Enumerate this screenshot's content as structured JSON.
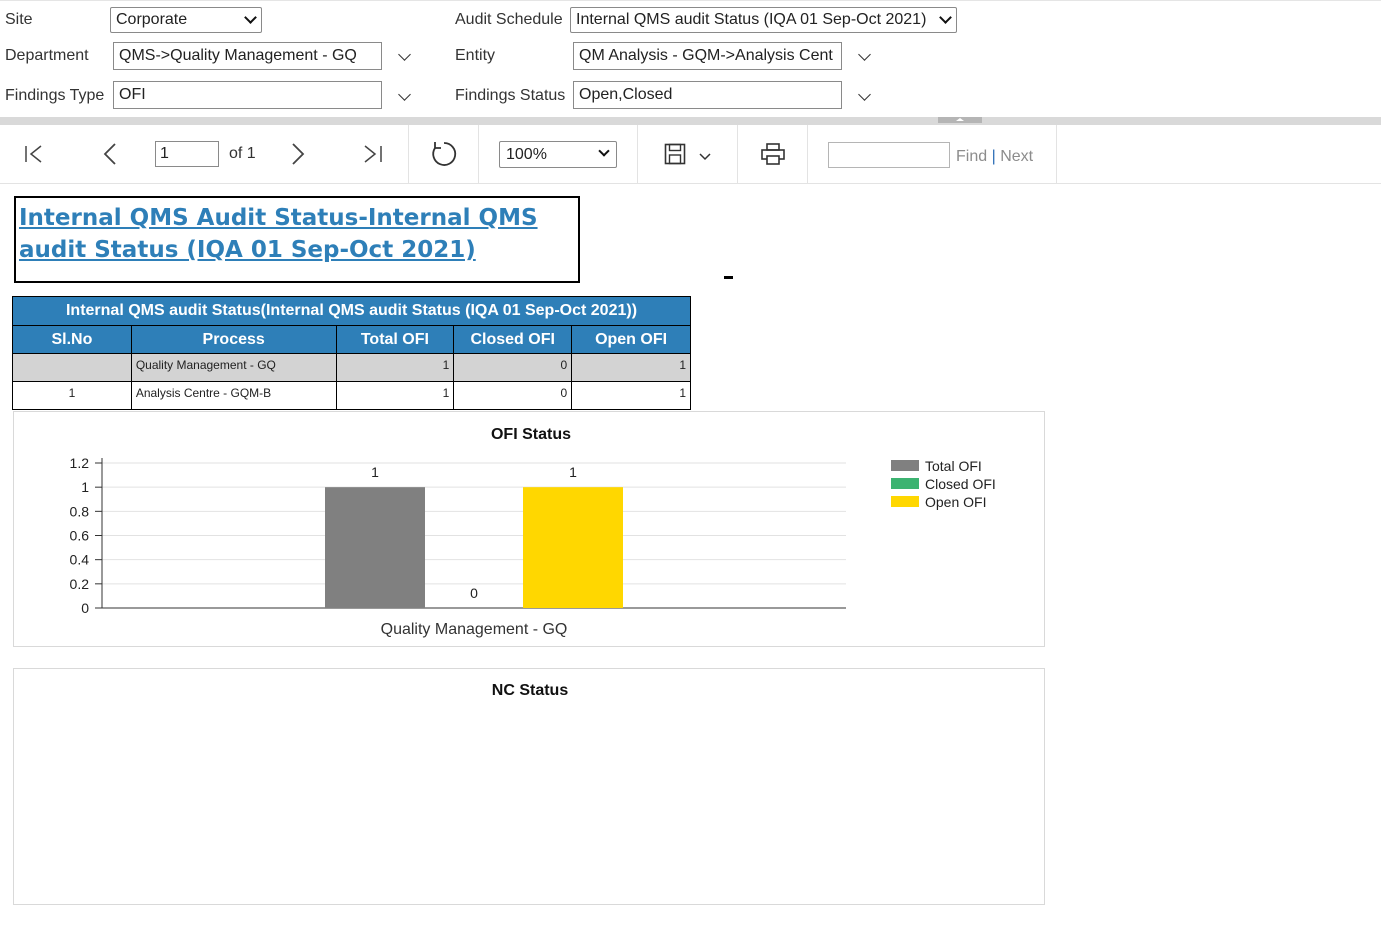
{
  "params": {
    "site": {
      "label": "Site",
      "value": "Corporate"
    },
    "audit_schedule": {
      "label": "Audit Schedule",
      "value": "Internal QMS audit Status (IQA 01 Sep-Oct 2021)"
    },
    "department": {
      "label": "Department",
      "value": "QMS->Quality Management - GQ"
    },
    "entity": {
      "label": "Entity",
      "value": "QM Analysis - GQM->Analysis Cent"
    },
    "findings_type": {
      "label": "Findings Type",
      "value": "OFI"
    },
    "findings_status": {
      "label": "Findings Status",
      "value": "Open,Closed"
    }
  },
  "toolbar": {
    "page_value": "1",
    "of_text": "of 1",
    "zoom": "100%",
    "find_label": "Find",
    "separator": "|",
    "next_label": "Next"
  },
  "report": {
    "title": "Internal QMS Audit Status-Internal QMS audit Status (IQA 01 Sep-Oct 2021)",
    "dash": "-",
    "table": {
      "caption": "Internal QMS audit Status(Internal QMS audit Status (IQA 01 Sep-Oct 2021))",
      "headers": [
        "Sl.No",
        "Process",
        "Total OFI",
        "Closed OFI",
        "Open OFI"
      ],
      "group_row": {
        "sl": "",
        "process": "Quality Management - GQ",
        "total": "1",
        "closed": "0",
        "open": "1"
      },
      "rows": [
        {
          "sl": "1",
          "process": "Analysis Centre - GQM-B",
          "total": "1",
          "closed": "0",
          "open": "1"
        }
      ]
    },
    "nc_title": "NC Status"
  },
  "chart_data": {
    "type": "bar",
    "title": "OFI Status",
    "categories": [
      "Quality Management - GQ"
    ],
    "series": [
      {
        "name": "Total OFI",
        "values": [
          1
        ],
        "color": "#808080"
      },
      {
        "name": "Closed OFI",
        "values": [
          0
        ],
        "color": "#3cb371"
      },
      {
        "name": "Open OFI",
        "values": [
          1
        ],
        "color": "#ffd700"
      }
    ],
    "yticks": [
      "0",
      "0.2",
      "0.4",
      "0.6",
      "0.8",
      "1",
      "1.2"
    ],
    "ylim": [
      0,
      1.2
    ],
    "data_labels": true,
    "grid": true,
    "legend": "right"
  }
}
